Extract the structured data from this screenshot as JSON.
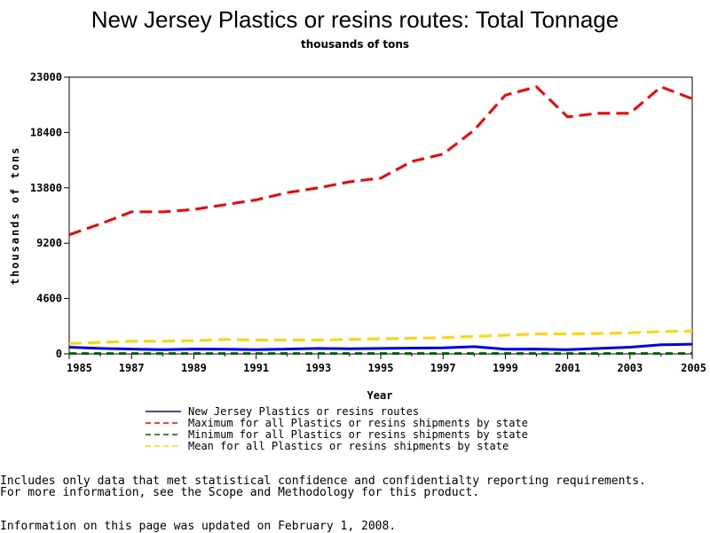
{
  "chart_data": {
    "type": "line",
    "title": "New Jersey Plastics or resins routes: Total Tonnage",
    "subtitle": "thousands of tons",
    "xlabel": "Year",
    "ylabel": "thousands of tons",
    "xlim": [
      1985,
      2005
    ],
    "ylim": [
      0,
      23000
    ],
    "x_ticks": [
      "1985",
      "1987",
      "1989",
      "1991",
      "1993",
      "1995",
      "1997",
      "1999",
      "2001",
      "2003",
      "2005"
    ],
    "y_ticks": [
      "0",
      "4600",
      "9200",
      "13800",
      "18400",
      "23000"
    ],
    "grid": false,
    "legend_position": "bottom",
    "x": [
      1985,
      1986,
      1987,
      1988,
      1989,
      1990,
      1991,
      1992,
      1993,
      1994,
      1995,
      1996,
      1997,
      1998,
      1999,
      2000,
      2001,
      2002,
      2003,
      2004,
      2005
    ],
    "series": [
      {
        "name": "New Jersey Plastics or resins routes",
        "color": "#0000ff",
        "dash": "solid",
        "values": [
          550,
          450,
          400,
          350,
          400,
          380,
          350,
          400,
          450,
          420,
          450,
          480,
          500,
          600,
          380,
          400,
          350,
          450,
          550,
          750,
          800
        ]
      },
      {
        "name": "Maximum for all Plastics or resins shipments by state",
        "color": "#ff0000",
        "dash": "long",
        "values": [
          9900,
          10800,
          11800,
          11800,
          12000,
          12400,
          12800,
          13400,
          13800,
          14300,
          14600,
          16000,
          16600,
          18600,
          21500,
          22200,
          19700,
          20000,
          20000,
          22200,
          21200
        ]
      },
      {
        "name": "Minimum for all Plastics or resins shipments by state",
        "color": "#006400",
        "dash": "short",
        "values": [
          30,
          30,
          30,
          30,
          30,
          30,
          30,
          30,
          30,
          30,
          30,
          30,
          30,
          30,
          30,
          30,
          30,
          30,
          30,
          30,
          30
        ]
      },
      {
        "name": "Mean for all Plastics or resins shipments by state",
        "color": "#ffd700",
        "dash": "long",
        "values": [
          850,
          950,
          1050,
          1050,
          1100,
          1200,
          1150,
          1150,
          1150,
          1200,
          1250,
          1300,
          1350,
          1450,
          1550,
          1650,
          1650,
          1700,
          1750,
          1850,
          1900
        ]
      }
    ]
  },
  "footnotes": {
    "line1": "Includes only data that met statistical confidence and confidentialty reporting requirements.",
    "line2": "For more information, see the Scope and Methodology for this product.",
    "line3": "Information on this page was updated on February 1, 2008."
  }
}
